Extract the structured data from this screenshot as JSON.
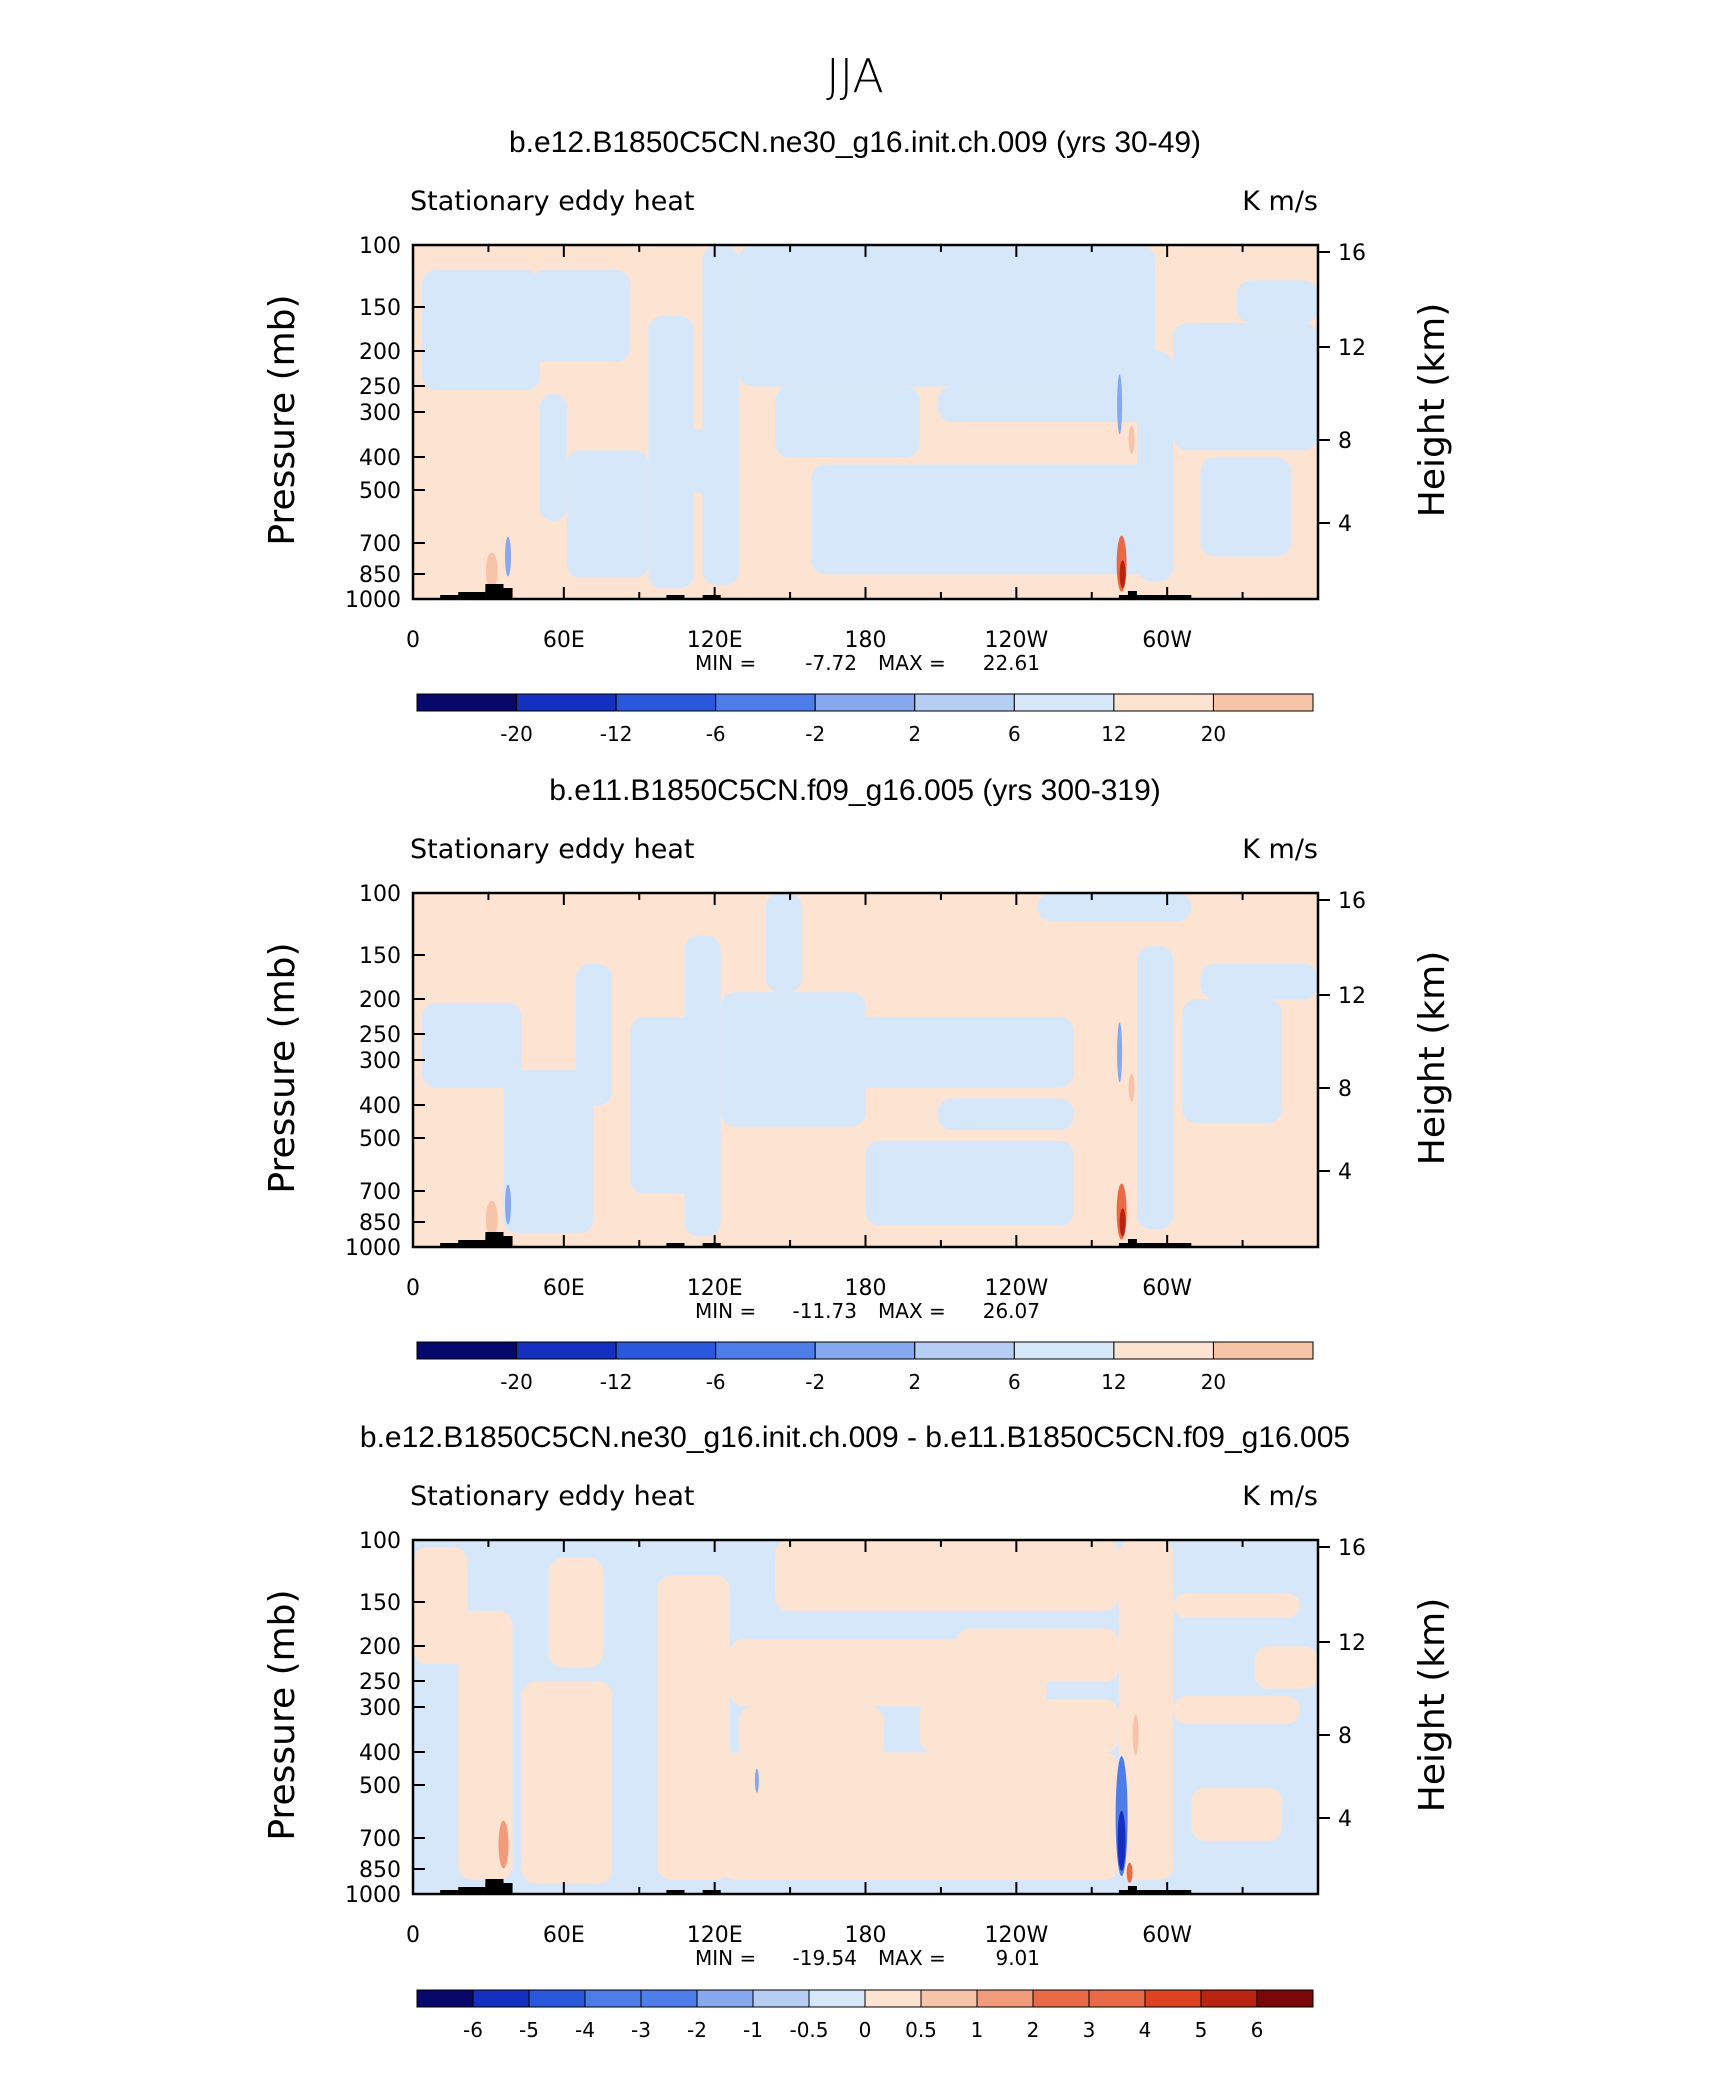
{
  "title": "JJA",
  "colors": {
    "palette": [
      "#08086b",
      "#1530c0",
      "#2a58dc",
      "#4d7de8",
      "#87a8ee",
      "#b6cdf4",
      "#d7e7fa",
      "#fde4d2",
      "#f7c3a9",
      "#f19b7a",
      "#e96a47",
      "#dd4321",
      "#b92312",
      "#7a0809"
    ],
    "terrain": "#000000"
  },
  "chart_data": [
    {
      "type": "heatmap",
      "title": "b.e12.B1850C5CN.ne30_g16.init.ch.009 (yrs 30-49)",
      "left_label": "Stationary eddy heat",
      "right_label": "K m/s",
      "ylabel": "Pressure (mb)",
      "ylabel_right": "Height (km)",
      "yticks": [
        "100",
        "150",
        "200",
        "250",
        "300",
        "400",
        "500",
        "700",
        "850",
        "1000"
      ],
      "yticks_right": [
        "16",
        "12",
        "8",
        "4"
      ],
      "xticks": [
        "0",
        "60E",
        "120E",
        "180",
        "120W",
        "60W"
      ],
      "min": "-7.72",
      "max": "22.61",
      "min_label": "MIN =",
      "max_label": "MAX =",
      "colorbar_labels": [
        "-20",
        "-12",
        "-6",
        "-2",
        "2",
        "6",
        "12",
        "20"
      ]
    },
    {
      "type": "heatmap",
      "title": "b.e11.B1850C5CN.f09_g16.005 (yrs 300-319)",
      "left_label": "Stationary eddy heat",
      "right_label": "K m/s",
      "ylabel": "Pressure (mb)",
      "ylabel_right": "Height (km)",
      "yticks": [
        "100",
        "150",
        "200",
        "250",
        "300",
        "400",
        "500",
        "700",
        "850",
        "1000"
      ],
      "yticks_right": [
        "16",
        "12",
        "8",
        "4"
      ],
      "xticks": [
        "0",
        "60E",
        "120E",
        "180",
        "120W",
        "60W"
      ],
      "min": "-11.73",
      "max": "26.07",
      "min_label": "MIN =",
      "max_label": "MAX =",
      "colorbar_labels": [
        "-20",
        "-12",
        "-6",
        "-2",
        "2",
        "6",
        "12",
        "20"
      ]
    },
    {
      "type": "heatmap",
      "title": "b.e12.B1850C5CN.ne30_g16.init.ch.009 - b.e11.B1850C5CN.f09_g16.005",
      "left_label": "Stationary eddy heat",
      "right_label": "K m/s",
      "ylabel": "Pressure (mb)",
      "ylabel_right": "Height (km)",
      "yticks": [
        "100",
        "150",
        "200",
        "250",
        "300",
        "400",
        "500",
        "700",
        "850",
        "1000"
      ],
      "yticks_right": [
        "16",
        "12",
        "8",
        "4"
      ],
      "xticks": [
        "0",
        "60E",
        "120E",
        "180",
        "120W",
        "60W"
      ],
      "min": "-19.54",
      "max": "9.01",
      "min_label": "MIN =",
      "max_label": "MAX =",
      "colorbar_labels": [
        "-6",
        "-5",
        "-4",
        "-3",
        "-2",
        "-1",
        "-0.5",
        "0",
        "0.5",
        "1",
        "2",
        "3",
        "4",
        "5",
        "6"
      ]
    }
  ]
}
